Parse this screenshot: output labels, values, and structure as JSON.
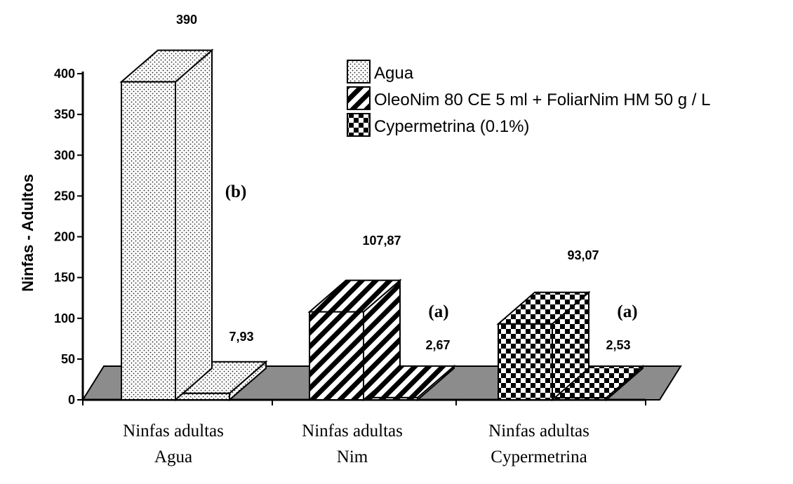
{
  "chart_data": {
    "type": "bar",
    "ylabel": "Ninfas - Adultos",
    "ylim": [
      0,
      400
    ],
    "yticks": [
      "0",
      "50",
      "100",
      "150",
      "200",
      "250",
      "300",
      "350",
      "400"
    ],
    "categories": [
      [
        "Ninfas adultas",
        "Agua"
      ],
      [
        "Ninfas adultas",
        "Nim"
      ],
      [
        "Ninfas adultas",
        "Cypermetrina"
      ]
    ],
    "legend": [
      {
        "label": "Agua",
        "pattern": "dots"
      },
      {
        "label": "OleoNim 80 CE 5 ml + FoliarNim HM 50 g / L",
        "pattern": "stripes"
      },
      {
        "label": "Cypermetrina (0.1%)",
        "pattern": "checker"
      }
    ],
    "groups": [
      {
        "bars": [
          {
            "value": 390,
            "label": "390"
          },
          {
            "value": 7.93,
            "label": "7,93"
          }
        ],
        "significance": "(b)",
        "pattern": "dots"
      },
      {
        "bars": [
          {
            "value": 107.87,
            "label": "107,87"
          },
          {
            "value": 2.67,
            "label": "2,67"
          }
        ],
        "significance": "(a)",
        "pattern": "stripes"
      },
      {
        "bars": [
          {
            "value": 93.07,
            "label": "93,07"
          },
          {
            "value": 2.53,
            "label": "2,53"
          }
        ],
        "significance": "(a)",
        "pattern": "checker"
      }
    ],
    "floor_color": "#8c8c8c",
    "grid": false,
    "legend_position": "top-right"
  }
}
